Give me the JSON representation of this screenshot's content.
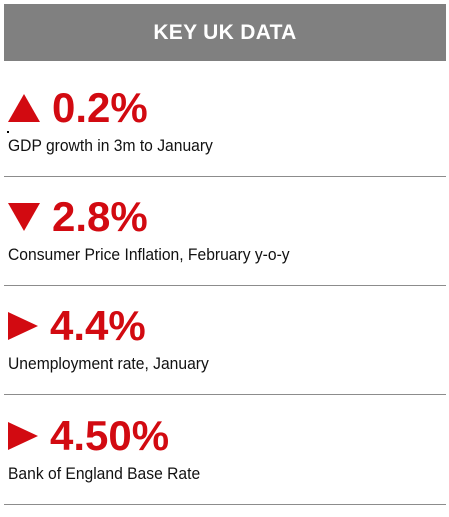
{
  "header": {
    "title": "KEY UK DATA"
  },
  "stats": [
    {
      "value": "0.2%",
      "direction": "up",
      "icon": "triangle-up-icon",
      "label": "GDP growth in 3m to January"
    },
    {
      "value": "2.8%",
      "direction": "down",
      "icon": "triangle-down-icon",
      "label": "Consumer Price Inflation, February y-o-y"
    },
    {
      "value": "4.4%",
      "direction": "right",
      "icon": "triangle-right-icon",
      "label": "Unemployment rate, January"
    },
    {
      "value": "4.50%",
      "direction": "right",
      "icon": "triangle-right-icon",
      "label": "Bank of England Base Rate"
    }
  ],
  "colors": {
    "accent": "#d20a11",
    "header_bg": "#808080",
    "header_text": "#ffffff",
    "divider": "#8c8c8c"
  }
}
